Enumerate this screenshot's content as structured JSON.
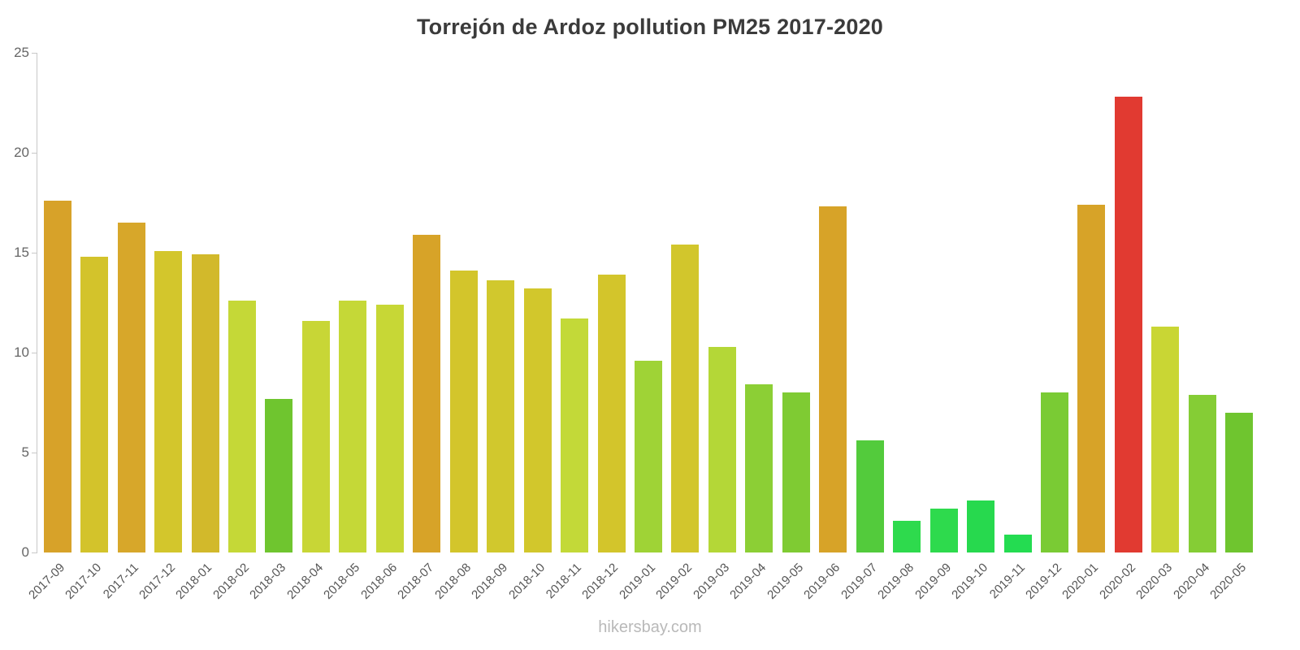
{
  "footer": {
    "text": "hikersbay.com"
  },
  "chart_data": {
    "type": "bar",
    "title": "Torrejón de Ardoz pollution PM25 2017-2020",
    "xlabel": "",
    "ylabel": "",
    "ylim": [
      0,
      25
    ],
    "yticks": [
      0,
      5,
      10,
      15,
      20,
      25
    ],
    "grid": false,
    "legend": "none",
    "categories": [
      "2017-09",
      "2017-10",
      "2017-11",
      "2017-12",
      "2018-01",
      "2018-02",
      "2018-03",
      "2018-04",
      "2018-05",
      "2018-06",
      "2018-07",
      "2018-08",
      "2018-09",
      "2018-10",
      "2018-11",
      "2018-12",
      "2019-01",
      "2019-02",
      "2019-03",
      "2019-04",
      "2019-05",
      "2019-06",
      "2019-07",
      "2019-08",
      "2019-09",
      "2019-10",
      "2019-11",
      "2019-12",
      "2020-01",
      "2020-02",
      "2020-03",
      "2020-04",
      "2020-05"
    ],
    "values": [
      17.6,
      14.8,
      16.5,
      15.1,
      14.9,
      12.6,
      7.7,
      11.6,
      12.6,
      12.4,
      15.9,
      14.1,
      13.6,
      13.2,
      11.7,
      13.9,
      9.6,
      15.4,
      10.3,
      8.4,
      8.0,
      17.3,
      5.6,
      1.6,
      2.2,
      2.6,
      0.9,
      8.0,
      17.4,
      22.8,
      11.3,
      7.9,
      7.0
    ],
    "colors": [
      "#d7a229",
      "#d3c32b",
      "#d7a72a",
      "#d3c62c",
      "#d2b92b",
      "#c5d837",
      "#6fc52f",
      "#c8d636",
      "#c5d837",
      "#c7d736",
      "#d7a328",
      "#d3c52b",
      "#d1c82d",
      "#d2c72c",
      "#c3d938",
      "#d3c52b",
      "#9fd336",
      "#d2c62c",
      "#b4d737",
      "#8ccf35",
      "#7fcb33",
      "#d7a328",
      "#53cb3c",
      "#2eda4d",
      "#2eda4d",
      "#27d94e",
      "#24dc51",
      "#7acb34",
      "#d7a328",
      "#e13a31",
      "#c9d634",
      "#85cd35",
      "#6fc52f"
    ]
  }
}
